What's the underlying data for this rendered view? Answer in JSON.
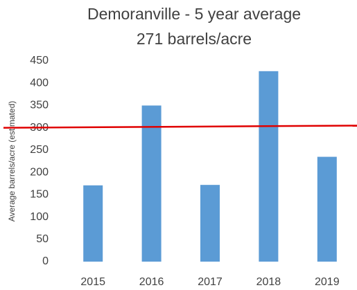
{
  "chart_data": {
    "type": "bar",
    "title": [
      "Demoranville - 5 year average",
      "271 barrels/acre"
    ],
    "y_label": "Average barrels/acre (estimated)",
    "categories": [
      "2015",
      "2016",
      "2017",
      "2018",
      "2019"
    ],
    "values": [
      171,
      350,
      172,
      427,
      235
    ],
    "color": "#5b9bd5",
    "ylim": [
      0,
      450
    ],
    "yticks": [
      0,
      50,
      100,
      150,
      200,
      250,
      300,
      350,
      400,
      450
    ],
    "grid": false,
    "trend_line": {
      "color": "#e00000",
      "values": [
        300,
        305
      ]
    }
  }
}
